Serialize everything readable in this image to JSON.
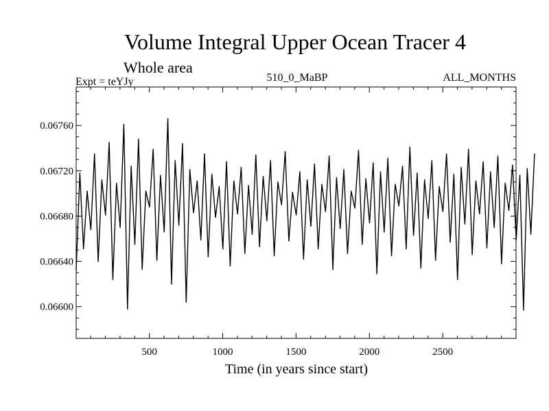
{
  "chart_data": {
    "type": "line",
    "title": "Volume Integral Upper Ocean Tracer 4",
    "subtitle": "Whole area",
    "experiment_label": "Expt = teYJy",
    "period_label": "510_0_MaBP",
    "months_label": "ALL_MONTHS",
    "xlabel": "Time (in years since start)",
    "ylabel": "",
    "xlim": [
      1,
      3000
    ],
    "ylim": [
      0.06572,
      0.06794
    ],
    "x_ticks": [
      500,
      1000,
      1500,
      2000,
      2500
    ],
    "x_tick_labels": [
      "500",
      "1000",
      "1500",
      "2000",
      "2500"
    ],
    "y_ticks": [
      0.066,
      0.0664,
      0.0668,
      0.0672,
      0.0676
    ],
    "y_tick_labels": [
      "0.06600",
      "0.06640",
      "0.06680",
      "0.06720",
      "0.06760"
    ],
    "grid": false,
    "legend": "none",
    "series": [
      {
        "color": "#000000",
        "x_start": 1,
        "x_step": 25,
        "values": [
          0.06632,
          0.06718,
          0.06651,
          0.06702,
          0.06668,
          0.06735,
          0.0664,
          0.06712,
          0.06681,
          0.06745,
          0.06624,
          0.06709,
          0.0667,
          0.06761,
          0.06598,
          0.06724,
          0.06655,
          0.06748,
          0.06633,
          0.06702,
          0.06688,
          0.06739,
          0.06641,
          0.06716,
          0.06666,
          0.06766,
          0.0662,
          0.06729,
          0.06672,
          0.06744,
          0.06604,
          0.06721,
          0.06683,
          0.06711,
          0.06659,
          0.06735,
          0.06644,
          0.06717,
          0.06679,
          0.06706,
          0.06651,
          0.06728,
          0.06636,
          0.06711,
          0.06682,
          0.06723,
          0.06647,
          0.06707,
          0.06664,
          0.06734,
          0.06653,
          0.06715,
          0.06676,
          0.06729,
          0.06645,
          0.0671,
          0.0669,
          0.06737,
          0.06658,
          0.06701,
          0.06681,
          0.06719,
          0.06642,
          0.06712,
          0.06671,
          0.06726,
          0.06651,
          0.06708,
          0.06684,
          0.06733,
          0.06633,
          0.06714,
          0.06669,
          0.06721,
          0.06647,
          0.06702,
          0.06687,
          0.06738,
          0.06655,
          0.06713,
          0.06674,
          0.06727,
          0.06629,
          0.06719,
          0.06666,
          0.06731,
          0.06645,
          0.06708,
          0.06689,
          0.06724,
          0.06651,
          0.06741,
          0.06663,
          0.06718,
          0.06634,
          0.06712,
          0.06678,
          0.06729,
          0.06641,
          0.06706,
          0.06684,
          0.06735,
          0.06657,
          0.06717,
          0.06624,
          0.06723,
          0.06673,
          0.06739,
          0.06646,
          0.06711,
          0.06682,
          0.06728,
          0.06652,
          0.06719,
          0.0667,
          0.06733,
          0.06638,
          0.06709,
          0.06685,
          0.06725,
          0.06659,
          0.06716,
          0.06597,
          0.06722,
          0.06664,
          0.06735
        ]
      }
    ]
  }
}
